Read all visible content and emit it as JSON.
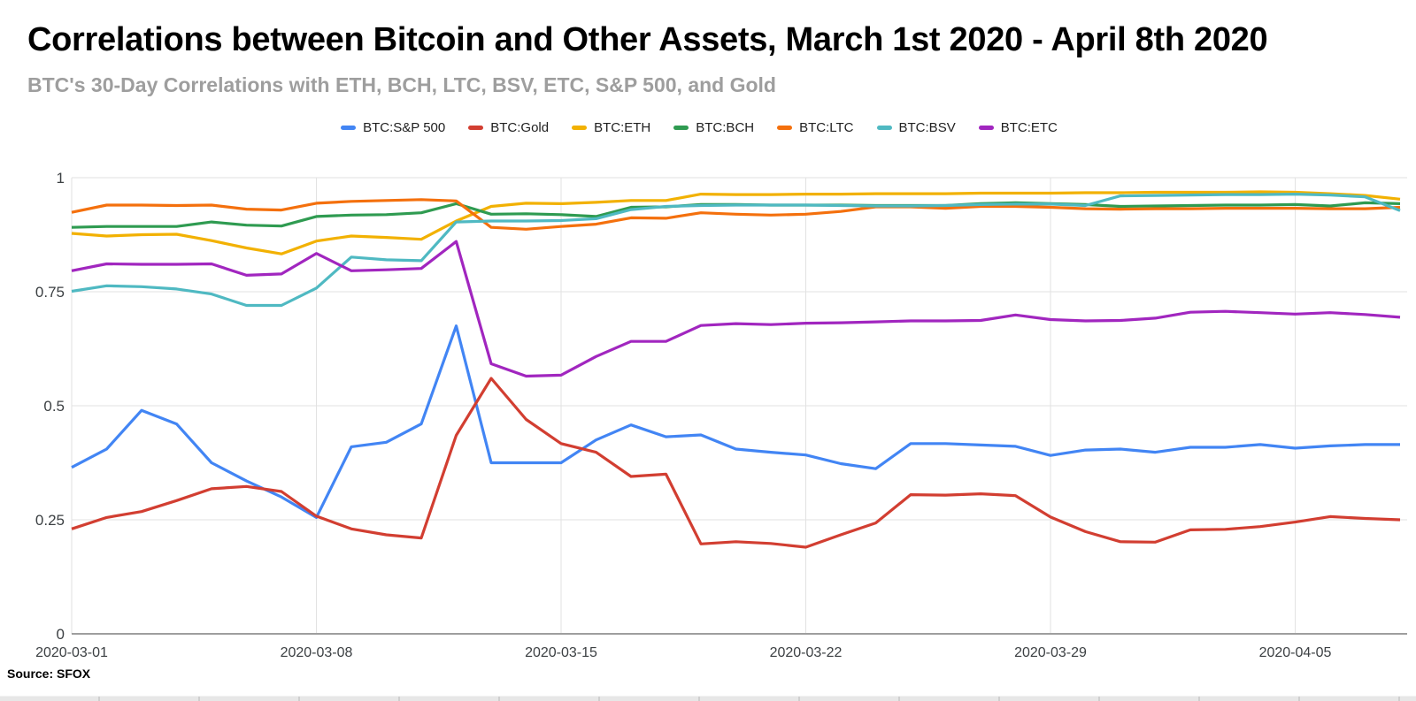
{
  "header": {
    "title": "Correlations between Bitcoin and Other Assets, March 1st 2020 - April 8th 2020",
    "subtitle": "BTC's 30-Day Correlations with ETH, BCH, LTC, BSV, ETC, S&P 500, and Gold"
  },
  "source": {
    "label": "Source: SFOX"
  },
  "colors": {
    "grid": "#e2e2e2",
    "axis": "#9e9e9e",
    "tick_text": "#3c4043"
  },
  "chart_data": {
    "type": "line",
    "title": "Correlations between Bitcoin and Other Assets, March 1st 2020 - April 8th 2020",
    "subtitle": "BTC's 30-Day Correlations with ETH, BCH, LTC, BSV, ETC, S&P 500, and Gold",
    "xlabel": "",
    "ylabel": "",
    "ylim": [
      0,
      1
    ],
    "grid": true,
    "legend_position": "top",
    "yticks": [
      0,
      0.25,
      0.5,
      0.75,
      1
    ],
    "ytick_labels": [
      "0",
      "0.25",
      "0.5",
      "0.75",
      "1"
    ],
    "xticks": [
      "2020-03-01",
      "2020-03-08",
      "2020-03-15",
      "2020-03-22",
      "2020-03-29",
      "2020-04-05"
    ],
    "x": [
      "2020-03-01",
      "2020-03-02",
      "2020-03-03",
      "2020-03-04",
      "2020-03-05",
      "2020-03-06",
      "2020-03-07",
      "2020-03-08",
      "2020-03-09",
      "2020-03-10",
      "2020-03-11",
      "2020-03-12",
      "2020-03-13",
      "2020-03-14",
      "2020-03-15",
      "2020-03-16",
      "2020-03-17",
      "2020-03-18",
      "2020-03-19",
      "2020-03-20",
      "2020-03-21",
      "2020-03-22",
      "2020-03-23",
      "2020-03-24",
      "2020-03-25",
      "2020-03-26",
      "2020-03-27",
      "2020-03-28",
      "2020-03-29",
      "2020-03-30",
      "2020-03-31",
      "2020-04-01",
      "2020-04-02",
      "2020-04-03",
      "2020-04-04",
      "2020-04-05",
      "2020-04-06",
      "2020-04-07",
      "2020-04-08"
    ],
    "series": [
      {
        "name": "BTC:S&P 500",
        "color": "#4285f4",
        "values": [
          0.365,
          0.405,
          0.49,
          0.46,
          0.375,
          0.335,
          0.3,
          0.255,
          0.41,
          0.42,
          0.46,
          0.675,
          0.375,
          0.375,
          0.375,
          0.425,
          0.458,
          0.432,
          0.436,
          0.405,
          0.398,
          0.392,
          0.373,
          0.362,
          0.417,
          0.417,
          0.414,
          0.411,
          0.391,
          0.403,
          0.405,
          0.398,
          0.409,
          0.409,
          0.415,
          0.407,
          0.412,
          0.415,
          0.415
        ]
      },
      {
        "name": "BTC:Gold",
        "color": "#d23e31",
        "values": [
          0.23,
          0.255,
          0.268,
          0.292,
          0.318,
          0.323,
          0.312,
          0.258,
          0.23,
          0.217,
          0.21,
          0.435,
          0.56,
          0.47,
          0.417,
          0.398,
          0.345,
          0.35,
          0.197,
          0.202,
          0.198,
          0.19,
          0.217,
          0.243,
          0.305,
          0.304,
          0.307,
          0.303,
          0.256,
          0.224,
          0.202,
          0.201,
          0.228,
          0.229,
          0.235,
          0.245,
          0.257,
          0.253,
          0.25
        ]
      },
      {
        "name": "BTC:ETH",
        "color": "#f2b102",
        "values": [
          0.878,
          0.872,
          0.875,
          0.876,
          0.862,
          0.846,
          0.833,
          0.861,
          0.872,
          0.869,
          0.865,
          0.905,
          0.937,
          0.944,
          0.943,
          0.946,
          0.95,
          0.95,
          0.964,
          0.963,
          0.963,
          0.964,
          0.964,
          0.965,
          0.965,
          0.965,
          0.966,
          0.966,
          0.966,
          0.967,
          0.967,
          0.968,
          0.968,
          0.968,
          0.969,
          0.968,
          0.965,
          0.961,
          0.953
        ]
      },
      {
        "name": "BTC:BCH",
        "color": "#2f9b51",
        "values": [
          0.891,
          0.893,
          0.893,
          0.893,
          0.903,
          0.896,
          0.894,
          0.915,
          0.918,
          0.919,
          0.923,
          0.943,
          0.92,
          0.921,
          0.919,
          0.915,
          0.935,
          0.936,
          0.941,
          0.941,
          0.94,
          0.94,
          0.94,
          0.939,
          0.939,
          0.939,
          0.943,
          0.945,
          0.943,
          0.941,
          0.937,
          0.938,
          0.939,
          0.94,
          0.94,
          0.941,
          0.938,
          0.945,
          0.943
        ]
      },
      {
        "name": "BTC:LTC",
        "color": "#f4700d",
        "values": [
          0.924,
          0.94,
          0.94,
          0.939,
          0.94,
          0.931,
          0.929,
          0.944,
          0.948,
          0.95,
          0.952,
          0.949,
          0.891,
          0.887,
          0.893,
          0.898,
          0.912,
          0.911,
          0.923,
          0.92,
          0.918,
          0.92,
          0.926,
          0.936,
          0.936,
          0.933,
          0.937,
          0.937,
          0.935,
          0.932,
          0.931,
          0.932,
          0.932,
          0.933,
          0.933,
          0.933,
          0.932,
          0.932,
          0.935
        ]
      },
      {
        "name": "BTC:BSV",
        "color": "#4fb9c2",
        "values": [
          0.751,
          0.763,
          0.761,
          0.756,
          0.745,
          0.72,
          0.72,
          0.758,
          0.826,
          0.82,
          0.818,
          0.903,
          0.905,
          0.905,
          0.906,
          0.91,
          0.93,
          0.937,
          0.939,
          0.94,
          0.94,
          0.94,
          0.939,
          0.938,
          0.938,
          0.939,
          0.941,
          0.942,
          0.942,
          0.939,
          0.96,
          0.961,
          0.962,
          0.963,
          0.963,
          0.964,
          0.962,
          0.958,
          0.928
        ]
      },
      {
        "name": "BTC:ETC",
        "color": "#a126bf",
        "values": [
          0.796,
          0.811,
          0.81,
          0.81,
          0.811,
          0.786,
          0.789,
          0.834,
          0.796,
          0.798,
          0.801,
          0.86,
          0.592,
          0.565,
          0.567,
          0.608,
          0.641,
          0.641,
          0.676,
          0.68,
          0.678,
          0.681,
          0.682,
          0.684,
          0.686,
          0.686,
          0.687,
          0.699,
          0.689,
          0.686,
          0.687,
          0.692,
          0.705,
          0.707,
          0.704,
          0.701,
          0.704,
          0.7,
          0.694
        ]
      }
    ]
  }
}
